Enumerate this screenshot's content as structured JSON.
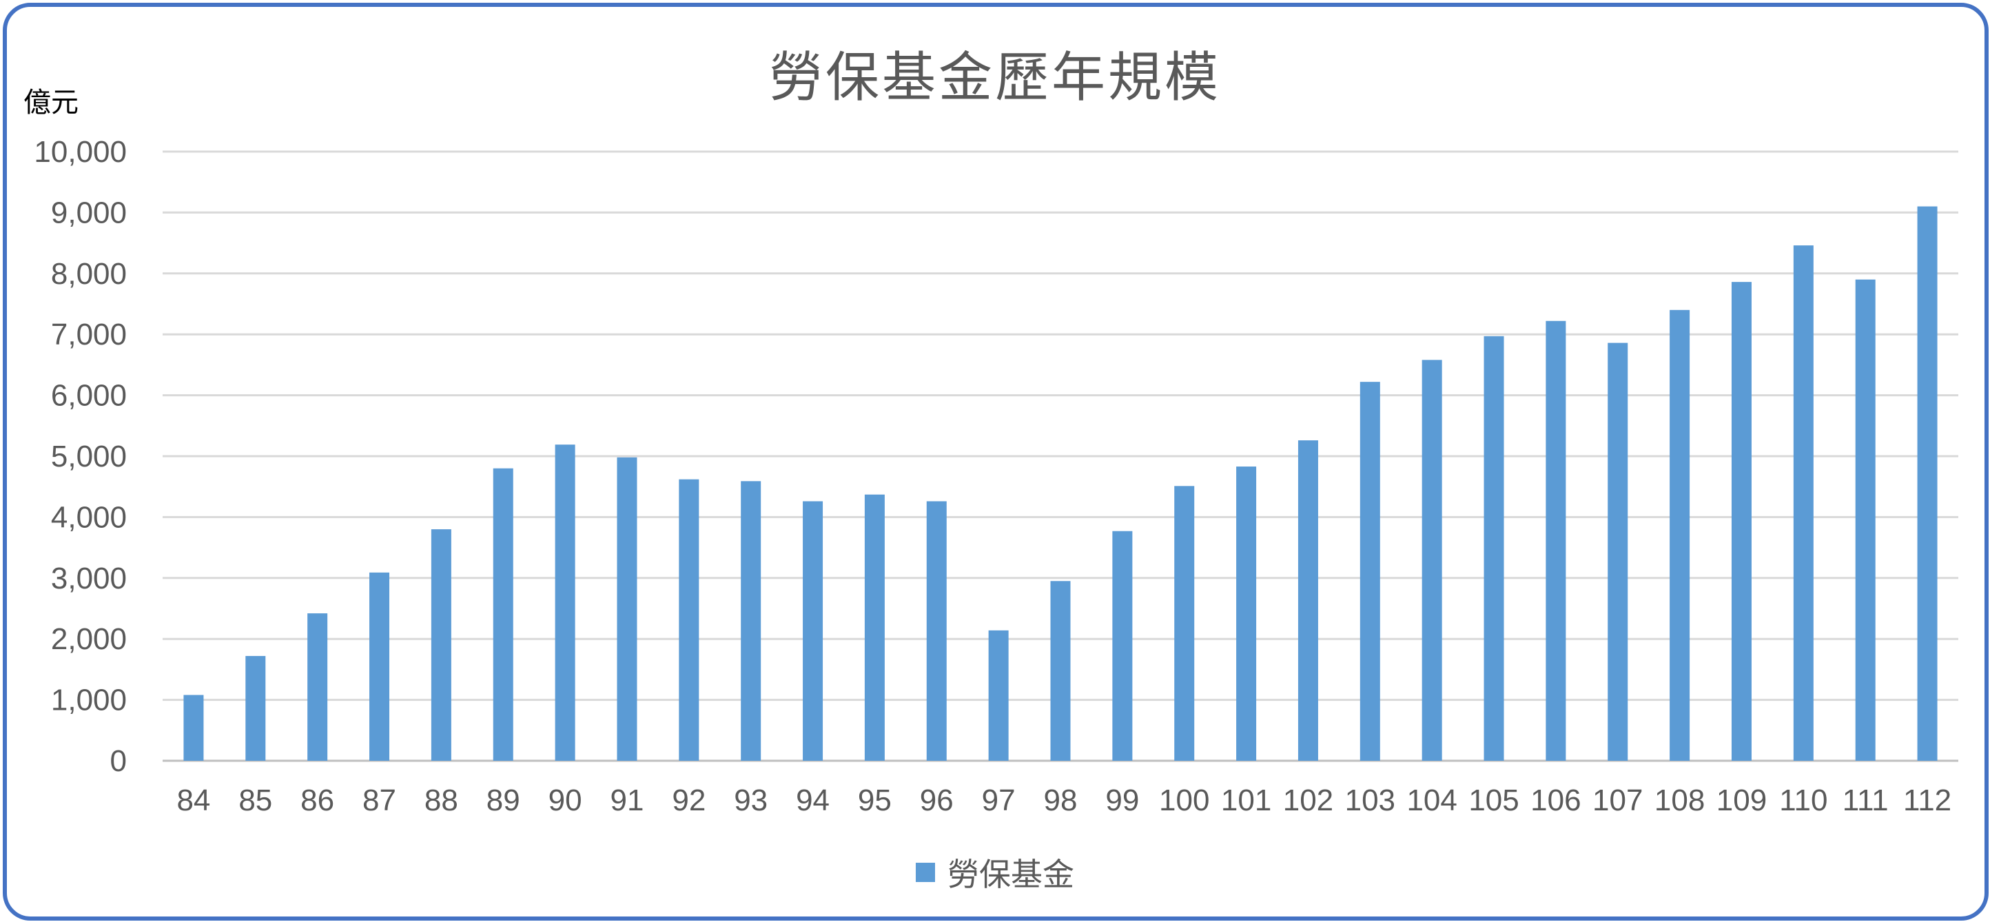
{
  "title": "勞保基金歷年規模",
  "unit_label": "億元",
  "colors": {
    "bar": "#5b9bd5",
    "grid": "#d9d9d9",
    "text": "#595959",
    "border": "#4472c4"
  },
  "chart_data": {
    "type": "bar",
    "title": "勞保基金歷年規模",
    "ylabel": "億元",
    "xlabel": "",
    "ylim": [
      0,
      10000
    ],
    "yticks": [
      "0",
      "1,000",
      "2,000",
      "3,000",
      "4,000",
      "5,000",
      "6,000",
      "7,000",
      "8,000",
      "9,000",
      "10,000"
    ],
    "grid": true,
    "legend_position": "bottom",
    "categories": [
      "84",
      "85",
      "86",
      "87",
      "88",
      "89",
      "90",
      "91",
      "92",
      "93",
      "94",
      "95",
      "96",
      "97",
      "98",
      "99",
      "100",
      "101",
      "102",
      "103",
      "104",
      "105",
      "106",
      "107",
      "108",
      "109",
      "110",
      "111",
      "112"
    ],
    "series": [
      {
        "name": "勞保基金",
        "values": [
          1080,
          1720,
          2420,
          3090,
          3800,
          4800,
          5190,
          4980,
          4620,
          4590,
          4260,
          4370,
          4260,
          2140,
          2950,
          3770,
          4510,
          4830,
          5260,
          6220,
          6580,
          6970,
          7220,
          6860,
          7400,
          7860,
          8460,
          7900,
          9100
        ]
      }
    ]
  }
}
